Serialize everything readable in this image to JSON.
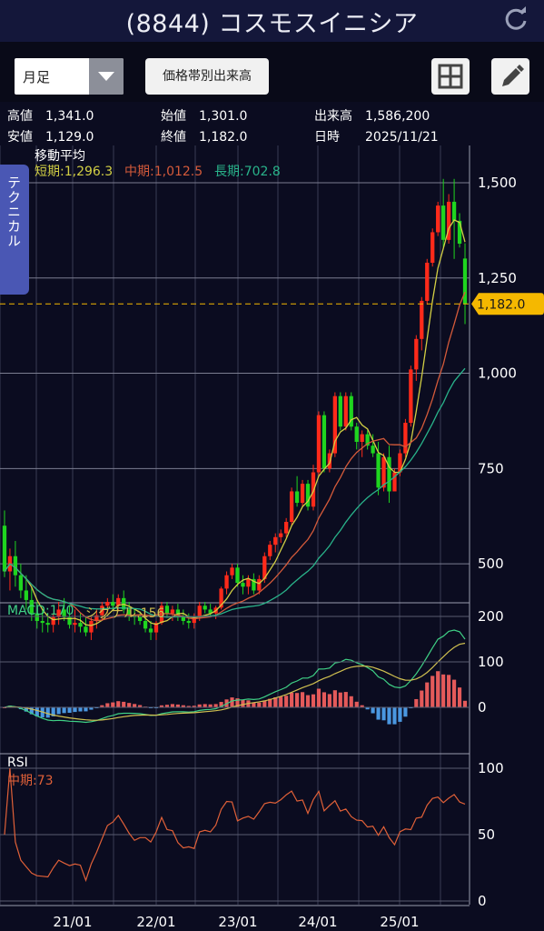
{
  "header": {
    "title": "(8844) コスモスイニシア",
    "refresh_icon": "refresh-icon"
  },
  "toolbar": {
    "period_select": "月足",
    "volume_button": "価格帯別出来高",
    "layout_icon": "grid-icon",
    "draw_icon": "pencil-icon"
  },
  "summary": [
    {
      "label": "高値",
      "value": "1,341.0"
    },
    {
      "label": "始値",
      "value": "1,301.0"
    },
    {
      "label": "出来高",
      "value": "1,586,200"
    },
    {
      "label": "安値",
      "value": "1,129.0"
    },
    {
      "label": "終値",
      "value": "1,182.0"
    },
    {
      "label": "日時",
      "value": "2025/11/21"
    }
  ],
  "side_tab": "テクニカル",
  "colors": {
    "up": "#ff2a1a",
    "down": "#1fd51f",
    "ma_short": "#d2cf44",
    "ma_mid": "#d45a3a",
    "ma_long": "#29b38a",
    "macd": "#3fd085",
    "signal": "#d0c050",
    "hist_pos": "#e45a5a",
    "hist_neg": "#4a97e0",
    "rsi": "#e06038",
    "badge": "#f5b800"
  },
  "chart_data": [
    {
      "type": "candlestick",
      "title": "移動平均",
      "legend": [
        {
          "name": "短期",
          "value": "1,296.3"
        },
        {
          "name": "中期",
          "value": "1,012.5"
        },
        {
          "name": "長期",
          "value": "702.8"
        }
      ],
      "current_price": "1,182.0",
      "ylim": [
        350,
        1550
      ],
      "yticks": [
        "1,500",
        "1,250",
        "1,000",
        "750",
        "500"
      ],
      "xticks": [
        "21/01",
        "22/01",
        "23/01",
        "24/01",
        "25/01"
      ],
      "ohlc": [
        [
          600,
          640,
          465,
          480
        ],
        [
          480,
          540,
          430,
          520
        ],
        [
          520,
          560,
          440,
          470
        ],
        [
          470,
          500,
          410,
          430
        ],
        [
          430,
          470,
          380,
          405
        ],
        [
          405,
          440,
          350,
          370
        ],
        [
          370,
          400,
          330,
          350
        ],
        [
          350,
          380,
          320,
          345
        ],
        [
          345,
          370,
          320,
          340
        ],
        [
          340,
          370,
          320,
          360
        ],
        [
          360,
          400,
          340,
          380
        ],
        [
          380,
          410,
          350,
          360
        ],
        [
          360,
          390,
          330,
          340
        ],
        [
          340,
          380,
          320,
          345
        ],
        [
          345,
          370,
          320,
          335
        ],
        [
          335,
          360,
          310,
          320
        ],
        [
          320,
          360,
          300,
          350
        ],
        [
          350,
          380,
          330,
          365
        ],
        [
          365,
          400,
          350,
          390
        ],
        [
          390,
          410,
          370,
          400
        ],
        [
          400,
          420,
          380,
          390
        ],
        [
          390,
          420,
          375,
          410
        ],
        [
          410,
          430,
          370,
          380
        ],
        [
          380,
          400,
          350,
          365
        ],
        [
          365,
          380,
          340,
          360
        ],
        [
          360,
          375,
          340,
          350
        ],
        [
          350,
          360,
          320,
          330
        ],
        [
          330,
          350,
          300,
          320
        ],
        [
          320,
          350,
          300,
          345
        ],
        [
          345,
          400,
          340,
          390
        ],
        [
          390,
          400,
          360,
          370
        ],
        [
          370,
          390,
          350,
          380
        ],
        [
          380,
          395,
          350,
          360
        ],
        [
          360,
          380,
          340,
          350
        ],
        [
          350,
          370,
          330,
          345
        ],
        [
          345,
          370,
          330,
          360
        ],
        [
          360,
          400,
          350,
          390
        ],
        [
          390,
          400,
          370,
          380
        ],
        [
          380,
          395,
          360,
          370
        ],
        [
          370,
          390,
          355,
          385
        ],
        [
          385,
          440,
          380,
          435
        ],
        [
          435,
          480,
          420,
          470
        ],
        [
          470,
          500,
          460,
          490
        ],
        [
          490,
          500,
          440,
          450
        ],
        [
          450,
          470,
          420,
          440
        ],
        [
          440,
          470,
          420,
          460
        ],
        [
          460,
          475,
          420,
          430
        ],
        [
          430,
          470,
          420,
          460
        ],
        [
          460,
          530,
          450,
          520
        ],
        [
          520,
          560,
          510,
          550
        ],
        [
          550,
          580,
          530,
          570
        ],
        [
          570,
          590,
          555,
          580
        ],
        [
          580,
          620,
          570,
          610
        ],
        [
          610,
          700,
          600,
          690
        ],
        [
          690,
          730,
          650,
          660
        ],
        [
          660,
          720,
          650,
          710
        ],
        [
          710,
          720,
          640,
          650
        ],
        [
          650,
          760,
          640,
          740
        ],
        [
          740,
          900,
          730,
          890
        ],
        [
          890,
          900,
          740,
          750
        ],
        [
          750,
          800,
          740,
          790
        ],
        [
          790,
          950,
          780,
          940
        ],
        [
          940,
          950,
          850,
          860
        ],
        [
          860,
          950,
          850,
          940
        ],
        [
          940,
          950,
          850,
          860
        ],
        [
          860,
          870,
          800,
          820
        ],
        [
          820,
          850,
          780,
          840
        ],
        [
          840,
          850,
          800,
          810
        ],
        [
          810,
          840,
          780,
          790
        ],
        [
          790,
          820,
          680,
          700
        ],
        [
          700,
          790,
          690,
          780
        ],
        [
          780,
          810,
          660,
          690
        ],
        [
          690,
          750,
          700,
          740
        ],
        [
          740,
          800,
          730,
          790
        ],
        [
          790,
          880,
          780,
          870
        ],
        [
          870,
          1020,
          860,
          1010
        ],
        [
          1010,
          1100,
          980,
          1090
        ],
        [
          1090,
          1200,
          1060,
          1190
        ],
        [
          1190,
          1300,
          1180,
          1290
        ],
        [
          1290,
          1380,
          1280,
          1370
        ],
        [
          1370,
          1450,
          1360,
          1440
        ],
        [
          1440,
          1510,
          1330,
          1350
        ],
        [
          1350,
          1470,
          1340,
          1450
        ],
        [
          1450,
          1510,
          1300,
          1400
        ],
        [
          1400,
          1420,
          1330,
          1340
        ],
        [
          1301,
          1341,
          1129,
          1182
        ]
      ],
      "ma_short_ref": 1296.3,
      "ma_mid_ref": 1012.5,
      "ma_long_ref": 702.8
    },
    {
      "type": "macd",
      "legend": [
        {
          "name": "MACD",
          "value": "170"
        },
        {
          "name": "シグナル",
          "value": "156"
        }
      ],
      "ylim": [
        -50,
        200
      ],
      "yticks": [
        "200",
        "100",
        "0"
      ]
    },
    {
      "type": "rsi",
      "title": "RSI",
      "legend": [
        {
          "name": "中期",
          "value": "73"
        }
      ],
      "ylim": [
        0,
        100
      ],
      "yticks": [
        "100",
        "50",
        "0"
      ]
    }
  ]
}
